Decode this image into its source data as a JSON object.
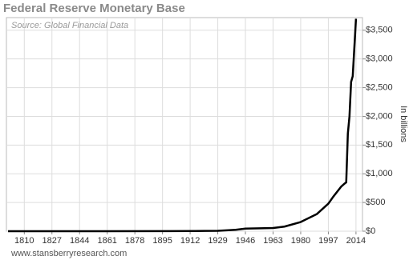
{
  "chart_data": {
    "type": "line",
    "title": "Federal Reserve Monetary Base",
    "subtitle": "Source: Global Financial Data",
    "y_label": "In billions",
    "footer": "www.stansberryresearch.com",
    "x": [
      1800,
      1850,
      1900,
      1915,
      1929,
      1940,
      1946,
      1955,
      1963,
      1970,
      1980,
      1990,
      1997,
      2000,
      2005,
      2007,
      2008,
      2009,
      2010,
      2011,
      2012,
      2013,
      2014
    ],
    "values": [
      0.03,
      0.3,
      2,
      4,
      7,
      25,
      45,
      50,
      55,
      80,
      160,
      300,
      480,
      600,
      780,
      830,
      850,
      1700,
      2000,
      2600,
      2700,
      3200,
      3700
    ],
    "color": "#000000",
    "xlim": [
      1799,
      2018
    ],
    "xticks": [
      1810,
      1827,
      1844,
      1861,
      1878,
      1895,
      1912,
      1929,
      1946,
      1963,
      1980,
      1997,
      2014
    ],
    "ylim": [
      0,
      3720
    ],
    "yticks": [
      {
        "value": 0,
        "label": "$0"
      },
      {
        "value": 500,
        "label": "$500"
      },
      {
        "value": 1000,
        "label": "$1,000"
      },
      {
        "value": 1500,
        "label": "$1,500"
      },
      {
        "value": 2000,
        "label": "$2,000"
      },
      {
        "value": 2500,
        "label": "$2,500"
      },
      {
        "value": 3000,
        "label": "$3,000"
      },
      {
        "value": 3500,
        "label": "$3,500"
      }
    ],
    "grid": true
  }
}
